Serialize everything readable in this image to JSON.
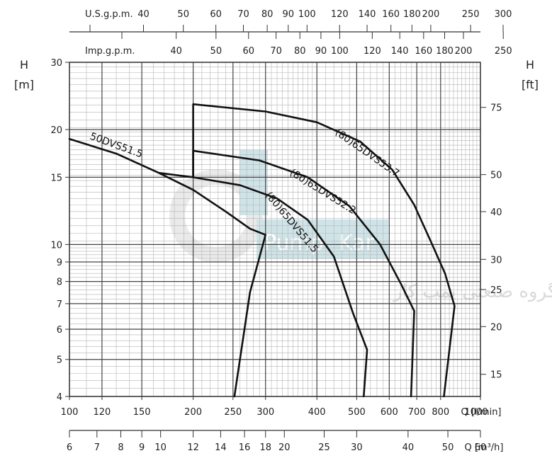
{
  "chart_data": {
    "type": "line",
    "x_scale": "log",
    "y_scale": "log",
    "xlim": [
      100,
      1000
    ],
    "ylim": [
      4,
      30
    ],
    "grid": true,
    "axes": {
      "x_main": {
        "unit": "Q [l/min]",
        "ticks": [
          {
            "v": 100,
            "t": "100"
          },
          {
            "v": 120,
            "t": "120"
          },
          {
            "v": 150,
            "t": "150"
          },
          {
            "v": 200,
            "t": "200"
          },
          {
            "v": 250,
            "t": "250"
          },
          {
            "v": 300,
            "t": "300"
          },
          {
            "v": 400,
            "t": "400"
          },
          {
            "v": 500,
            "t": "500"
          },
          {
            "v": 600,
            "t": "600"
          },
          {
            "v": 700,
            "t": "700"
          },
          {
            "v": 800,
            "t": "800"
          },
          {
            "v": 1000,
            "t": "1000"
          }
        ]
      },
      "x_m3h": {
        "unit": "Q [m³/h]",
        "ticks": [
          {
            "v": 6,
            "t": "6"
          },
          {
            "v": 7,
            "t": "7"
          },
          {
            "v": 8,
            "t": "8"
          },
          {
            "v": 9,
            "t": "9"
          },
          {
            "v": 10,
            "t": "10"
          },
          {
            "v": 12,
            "t": "12"
          },
          {
            "v": 14,
            "t": "14"
          },
          {
            "v": 16,
            "t": "16"
          },
          {
            "v": 18,
            "t": "18"
          },
          {
            "v": 20,
            "t": "20"
          },
          {
            "v": 25,
            "t": "25"
          },
          {
            "v": 30,
            "t": "30"
          },
          {
            "v": 40,
            "t": "40"
          },
          {
            "v": 50,
            "t": "50"
          },
          {
            "v": 60,
            "t": "60"
          }
        ]
      },
      "x_usgpm": {
        "unit": "U.S.g.p.m.",
        "ticks": [
          {
            "v": 40,
            "t": "40"
          },
          {
            "v": 50,
            "t": "50"
          },
          {
            "v": 60,
            "t": "60"
          },
          {
            "v": 70,
            "t": "70"
          },
          {
            "v": 80,
            "t": "80"
          },
          {
            "v": 90,
            "t": "90"
          },
          {
            "v": 100,
            "t": "100"
          },
          {
            "v": 120,
            "t": "120"
          },
          {
            "v": 140,
            "t": "140"
          },
          {
            "v": 160,
            "t": "160"
          },
          {
            "v": 180,
            "t": "180"
          },
          {
            "v": 200,
            "t": "200"
          },
          {
            "v": 250,
            "t": "250"
          },
          {
            "v": 300,
            "t": "300"
          }
        ]
      },
      "x_impgpm": {
        "unit": "Imp.g.p.m.",
        "ticks": [
          {
            "v": 40,
            "t": "40"
          },
          {
            "v": 50,
            "t": "50"
          },
          {
            "v": 60,
            "t": "60"
          },
          {
            "v": 70,
            "t": "70"
          },
          {
            "v": 80,
            "t": "80"
          },
          {
            "v": 90,
            "t": "90"
          },
          {
            "v": 100,
            "t": "100"
          },
          {
            "v": 120,
            "t": "120"
          },
          {
            "v": 140,
            "t": "140"
          },
          {
            "v": 160,
            "t": "160"
          },
          {
            "v": 180,
            "t": "180"
          },
          {
            "v": 200,
            "t": "200"
          },
          {
            "v": 250,
            "t": "250"
          }
        ]
      },
      "y_left": {
        "label": "H",
        "unit": "[m]",
        "ticks": [
          {
            "v": 4,
            "t": "4"
          },
          {
            "v": 5,
            "t": "5"
          },
          {
            "v": 6,
            "t": "6"
          },
          {
            "v": 7,
            "t": "7"
          },
          {
            "v": 8,
            "t": "8"
          },
          {
            "v": 9,
            "t": "9"
          },
          {
            "v": 10,
            "t": "10"
          },
          {
            "v": 15,
            "t": "15"
          },
          {
            "v": 20,
            "t": "20"
          },
          {
            "v": 30,
            "t": "30"
          }
        ]
      },
      "y_right": {
        "label": "H",
        "unit": "[ft]",
        "ticks": [
          {
            "v": 15,
            "t": "15"
          },
          {
            "v": 20,
            "t": "20"
          },
          {
            "v": 25,
            "t": "25"
          },
          {
            "v": 30,
            "t": "30"
          },
          {
            "v": 40,
            "t": "40"
          },
          {
            "v": 50,
            "t": "50"
          },
          {
            "v": 75,
            "t": "75"
          }
        ]
      }
    },
    "series": [
      {
        "name": "50DVS51.5",
        "points": [
          [
            100,
            18.9
          ],
          [
            130,
            17.3
          ],
          [
            165,
            15.4
          ],
          [
            200,
            13.9
          ],
          [
            240,
            12.2
          ],
          [
            275,
            11.0
          ],
          [
            300,
            10.6
          ],
          [
            275,
            7.5
          ],
          [
            252,
            4.0
          ]
        ]
      },
      {
        "name": "(80)65DVS51.5",
        "points": [
          [
            165,
            15.4
          ],
          [
            200,
            15.0
          ],
          [
            260,
            14.3
          ],
          [
            320,
            13.2
          ],
          [
            380,
            11.6
          ],
          [
            440,
            9.3
          ],
          [
            490,
            6.6
          ],
          [
            530,
            5.3
          ],
          [
            520,
            4.0
          ]
        ]
      },
      {
        "name": "(80)65DVS52.2",
        "points": [
          [
            200,
            15.0
          ],
          [
            200,
            17.6
          ],
          [
            290,
            16.6
          ],
          [
            380,
            15.0
          ],
          [
            480,
            12.6
          ],
          [
            570,
            10.0
          ],
          [
            640,
            7.9
          ],
          [
            690,
            6.7
          ],
          [
            678,
            4.0
          ]
        ]
      },
      {
        "name": "(80)65DVS53.7",
        "points": [
          [
            200,
            15.0
          ],
          [
            200,
            23.3
          ],
          [
            300,
            22.3
          ],
          [
            400,
            20.9
          ],
          [
            510,
            18.6
          ],
          [
            610,
            15.7
          ],
          [
            690,
            12.7
          ],
          [
            760,
            10.1
          ],
          [
            820,
            8.4
          ],
          [
            865,
            6.9
          ],
          [
            815,
            4.0
          ]
        ]
      }
    ]
  },
  "watermark": {
    "brand_left": "Pump",
    "brand_right": "Kar",
    "tagline": "گروه صنعتی پمپ کار"
  }
}
